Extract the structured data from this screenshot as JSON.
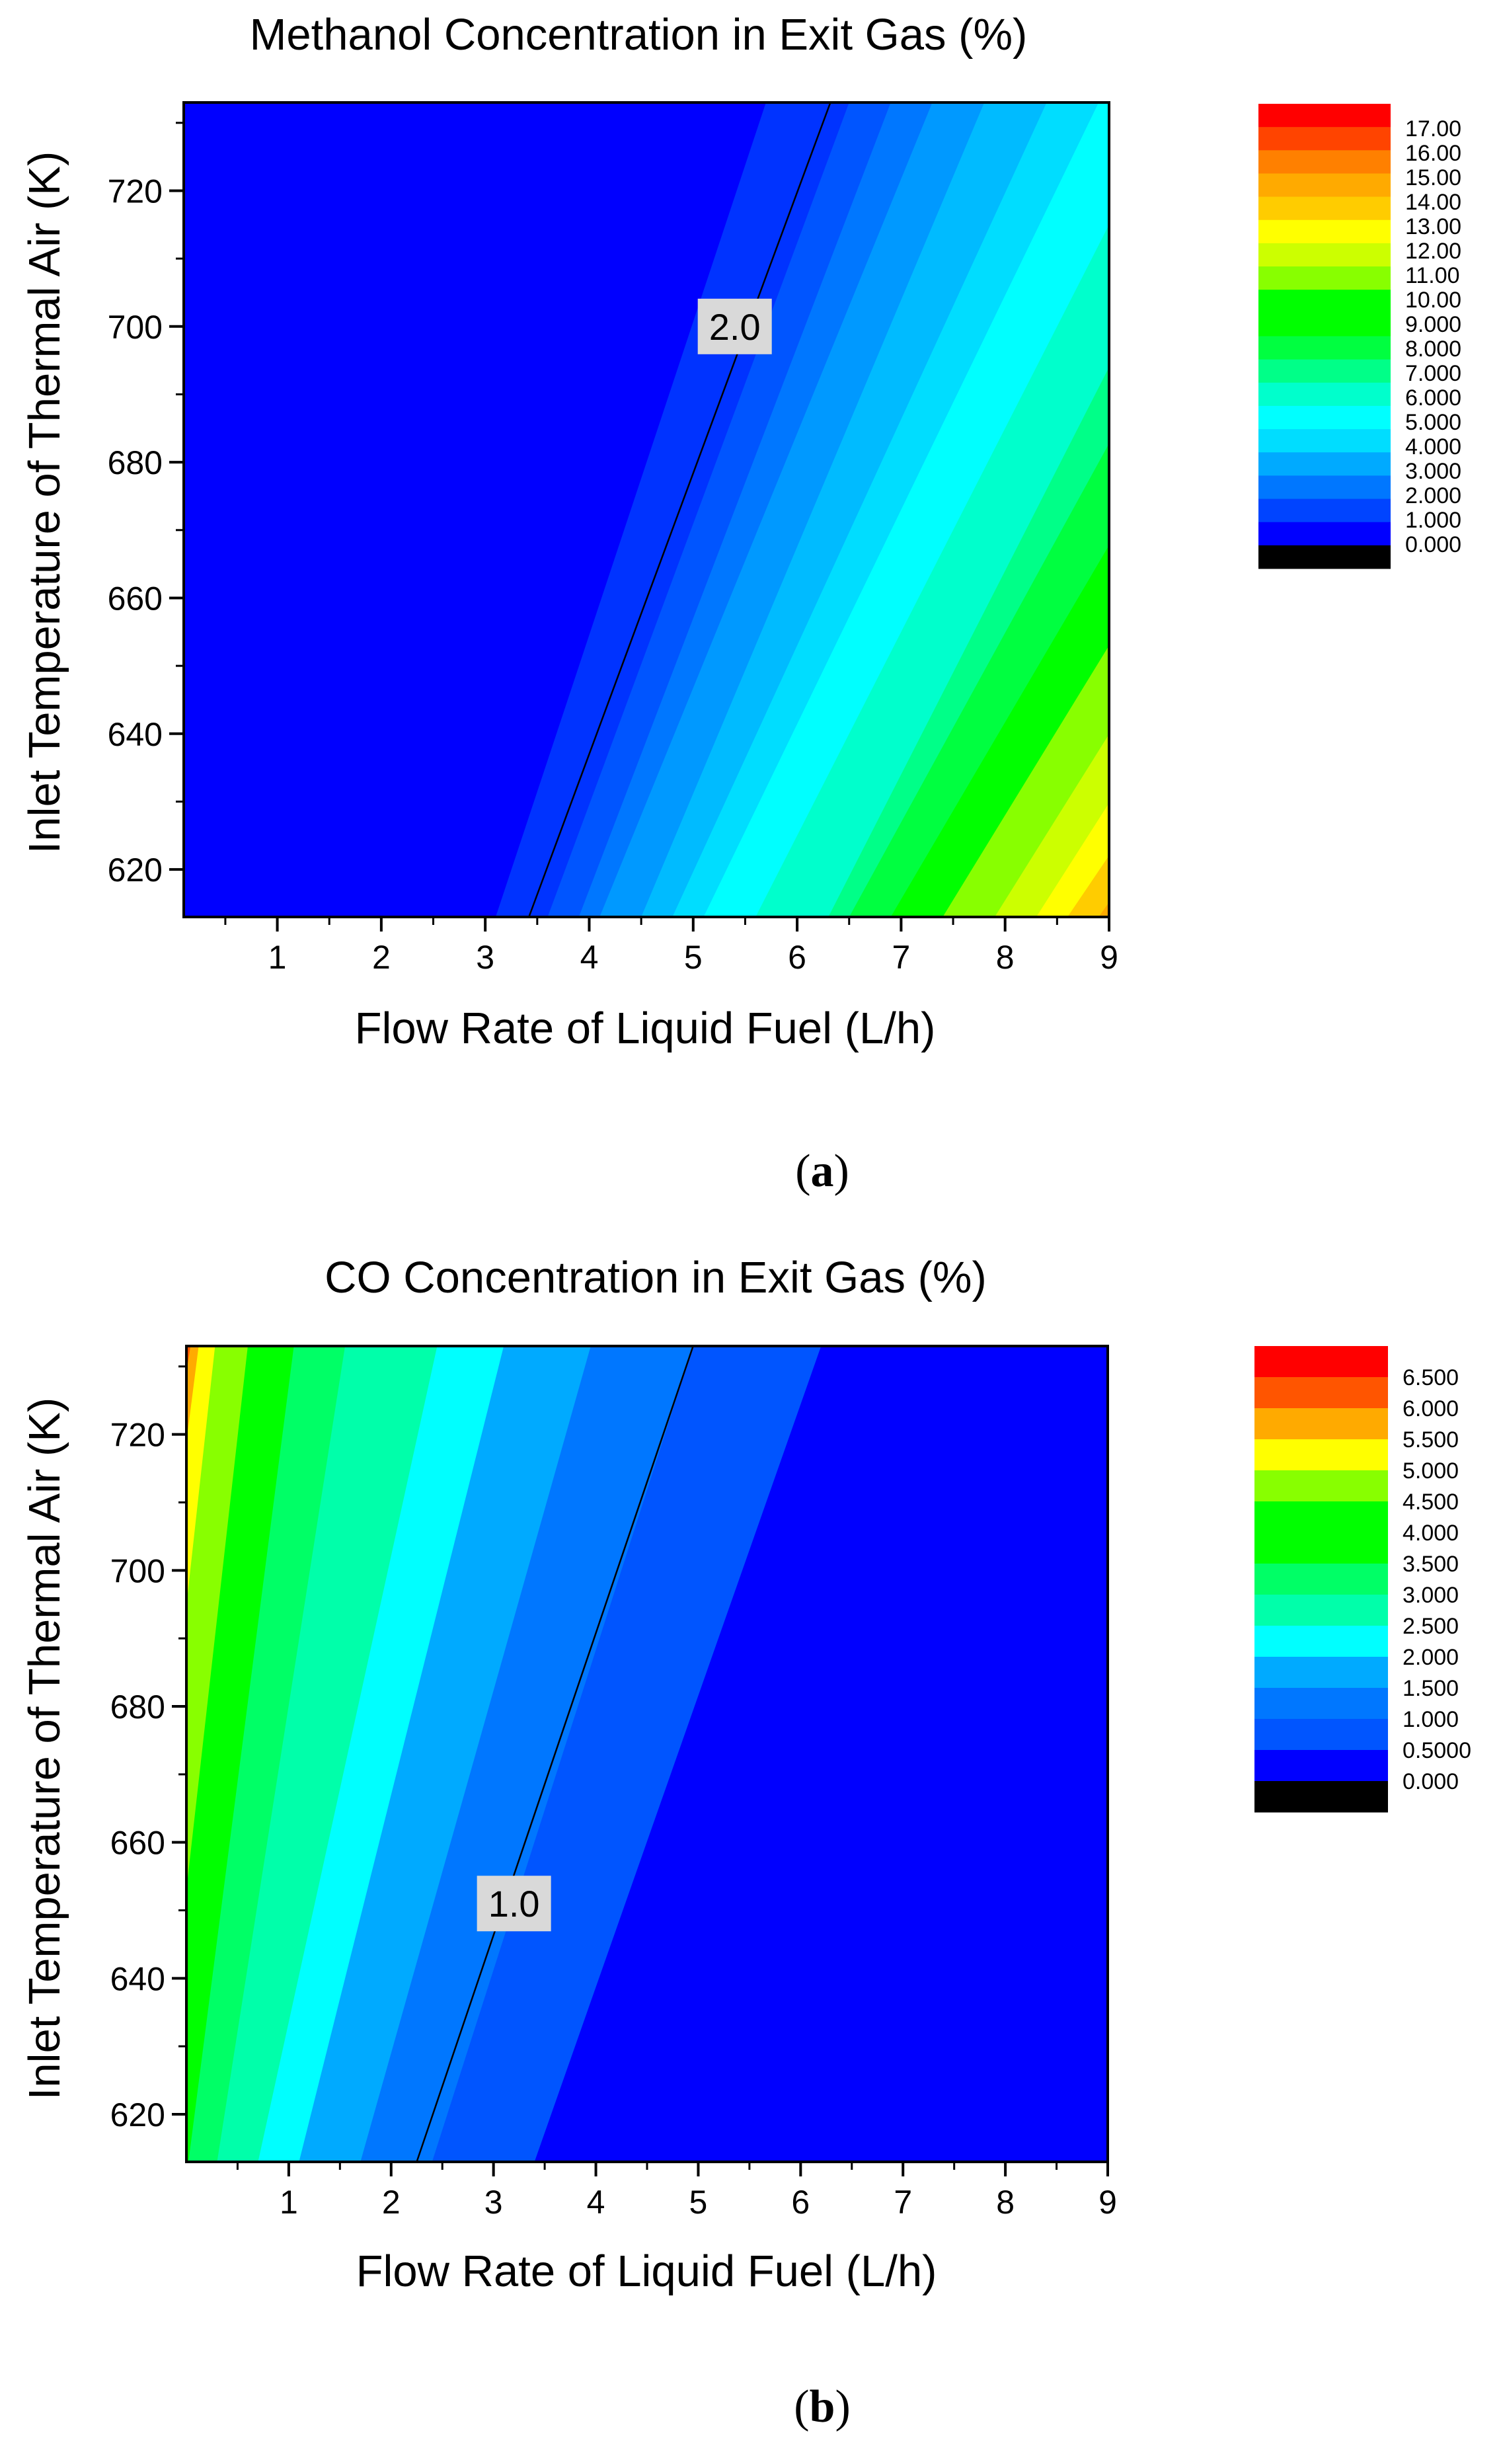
{
  "chart_data": [
    {
      "type": "heatmap",
      "title": "Methanol Concentration in Exit Gas (%)",
      "xlabel": "Flow Rate of Liquid Fuel (L/h)",
      "ylabel": "Inlet Temperature of Thermal Air (K)",
      "xlim": [
        0.1,
        9
      ],
      "ylim": [
        613,
        733
      ],
      "x_ticks": [
        1,
        2,
        3,
        4,
        5,
        6,
        7,
        8,
        9
      ],
      "y_ticks": [
        620,
        640,
        660,
        680,
        700,
        720
      ],
      "bands": [
        {
          "upper": 1.0,
          "color": "#0000ff"
        },
        {
          "upper": 1.5,
          "color": "#0033ff"
        },
        {
          "upper": 2.0,
          "color": "#0055ff"
        },
        {
          "upper": 2.5,
          "color": "#0077ff"
        },
        {
          "upper": 3.0,
          "color": "#0099ff"
        },
        {
          "upper": 3.5,
          "color": "#00bbff"
        },
        {
          "upper": 4.0,
          "color": "#00ddff"
        },
        {
          "upper": 5.0,
          "color": "#00ffff"
        },
        {
          "upper": 6.0,
          "color": "#00ffcc"
        },
        {
          "upper": 7.0,
          "color": "#00ff88"
        },
        {
          "upper": 8.0,
          "color": "#00ff40"
        },
        {
          "upper": 10.0,
          "color": "#00ff00"
        },
        {
          "upper": 11.0,
          "color": "#88ff00"
        },
        {
          "upper": 12.0,
          "color": "#ccff00"
        },
        {
          "upper": 13.0,
          "color": "#ffff00"
        },
        {
          "upper": 14.0,
          "color": "#ffcc00"
        },
        {
          "upper": 15.0,
          "color": "#ffaa00"
        },
        {
          "upper": 16.0,
          "color": "#ff8000"
        },
        {
          "upper": 17.0,
          "color": "#ff4400"
        },
        {
          "upper": 99.0,
          "color": "#ff0000"
        }
      ],
      "boundaries": [
        {
          "bottom": 3.1,
          "top": 5.7
        },
        {
          "bottom": 3.6,
          "top": 6.5
        },
        {
          "bottom": 3.9,
          "top": 6.9
        },
        {
          "bottom": 4.1,
          "top": 7.3
        },
        {
          "bottom": 4.5,
          "top": 7.8
        },
        {
          "bottom": 4.8,
          "top": 8.4
        },
        {
          "bottom": 5.1,
          "top": 8.9
        },
        {
          "bottom": 5.6,
          "top": 9.6
        },
        {
          "bottom": 6.3,
          "top": 10.3
        },
        {
          "bottom": 6.5,
          "top": 10.8
        },
        {
          "bottom": 6.9,
          "top": 11.5
        },
        {
          "bottom": 7.4,
          "top": 12.2
        },
        {
          "bottom": 7.9,
          "top": 12.8
        },
        {
          "bottom": 8.3,
          "top": 13.3
        },
        {
          "bottom": 8.6,
          "top": 13.9
        },
        {
          "bottom": 8.9,
          "top": 14.4
        },
        {
          "bottom": 9.1,
          "top": 15.0
        },
        {
          "bottom": 9.5,
          "top": 15.5
        },
        {
          "bottom": 9.9,
          "top": 16.0
        }
      ],
      "contour_line": {
        "label": "2.0",
        "x_bottom": 3.42,
        "x_top": 6.32,
        "label_x": 5.4,
        "label_y": 700
      },
      "legend": {
        "position": "right",
        "labels": [
          "17.00",
          "16.00",
          "15.00",
          "14.00",
          "13.00",
          "12.00",
          "11.00",
          "10.00",
          "9.000",
          "8.000",
          "7.000",
          "6.000",
          "5.000",
          "4.000",
          "3.000",
          "2.000",
          "1.000",
          "0.000"
        ],
        "colors": [
          "#ff0000",
          "#ff4400",
          "#ff8000",
          "#ffaa00",
          "#ffcc00",
          "#ffff00",
          "#ccff00",
          "#88ff00",
          "#00ff00",
          "#00ff00",
          "#00ff40",
          "#00ff88",
          "#00ffcc",
          "#00ffff",
          "#00ddff",
          "#00aaff",
          "#0077ff",
          "#0044ff",
          "#0000ff",
          "#000000"
        ]
      },
      "sublabel": "a"
    },
    {
      "type": "heatmap",
      "title": "CO Concentration in Exit Gas (%)",
      "xlabel": "Flow Rate of Liquid Fuel (L/h)",
      "ylabel": "Inlet Temperature of Thermal Air (K)",
      "xlim": [
        0.0,
        9
      ],
      "ylim": [
        613,
        733
      ],
      "x_ticks": [
        1,
        2,
        3,
        4,
        5,
        6,
        7,
        8,
        9
      ],
      "y_ticks": [
        620,
        640,
        660,
        680,
        700,
        720
      ],
      "bands": [
        {
          "upper": 0.5,
          "color": "#0000ff"
        },
        {
          "upper": 0.75,
          "color": "#0055ff"
        },
        {
          "upper": 1.0,
          "color": "#0077ff"
        },
        {
          "upper": 1.5,
          "color": "#00aaff"
        },
        {
          "upper": 2.0,
          "color": "#00ffff"
        },
        {
          "upper": 2.5,
          "color": "#00ffaa"
        },
        {
          "upper": 3.0,
          "color": "#00ff66"
        },
        {
          "upper": 4.0,
          "color": "#00ff00"
        },
        {
          "upper": 4.5,
          "color": "#88ff00"
        },
        {
          "upper": 5.0,
          "color": "#ffff00"
        },
        {
          "upper": 5.5,
          "color": "#ffaa00"
        },
        {
          "upper": 6.0,
          "color": "#ff5500"
        },
        {
          "upper": 99.0,
          "color": "#ff0000"
        }
      ],
      "boundaries": [
        {
          "bottom": 3.4,
          "top": 6.2
        },
        {
          "bottom": 2.4,
          "top": 4.95
        },
        {
          "bottom": 1.7,
          "top": 3.95
        },
        {
          "bottom": 1.1,
          "top": 3.1
        },
        {
          "bottom": 0.7,
          "top": 2.45
        },
        {
          "bottom": 0.3,
          "top": 1.55
        },
        {
          "bottom": 0.02,
          "top": 1.05
        },
        {
          "bottom": -0.3,
          "top": 0.6
        },
        {
          "bottom": -0.6,
          "top": 0.28
        },
        {
          "bottom": -0.9,
          "top": 0.12
        },
        {
          "bottom": -1.2,
          "top": 0.04
        },
        {
          "bottom": -1.5,
          "top": 0.01
        }
      ],
      "contour_line": {
        "label": "1.0",
        "x_bottom": 2.25,
        "x_top": 4.95,
        "label_x": 3.2,
        "label_y": 651
      },
      "legend": {
        "position": "right",
        "labels": [
          "6.500",
          "6.000",
          "5.500",
          "5.000",
          "4.500",
          "4.000",
          "3.500",
          "3.000",
          "2.500",
          "2.000",
          "1.500",
          "1.000",
          "0.5000",
          "0.000"
        ],
        "colors": [
          "#ff0000",
          "#ff5500",
          "#ffaa00",
          "#ffff00",
          "#88ff00",
          "#00ff00",
          "#00ff00",
          "#00ff66",
          "#00ffaa",
          "#00ffff",
          "#00aaff",
          "#0077ff",
          "#0055ff",
          "#0000ff",
          "#000000"
        ]
      },
      "sublabel": "b"
    }
  ]
}
